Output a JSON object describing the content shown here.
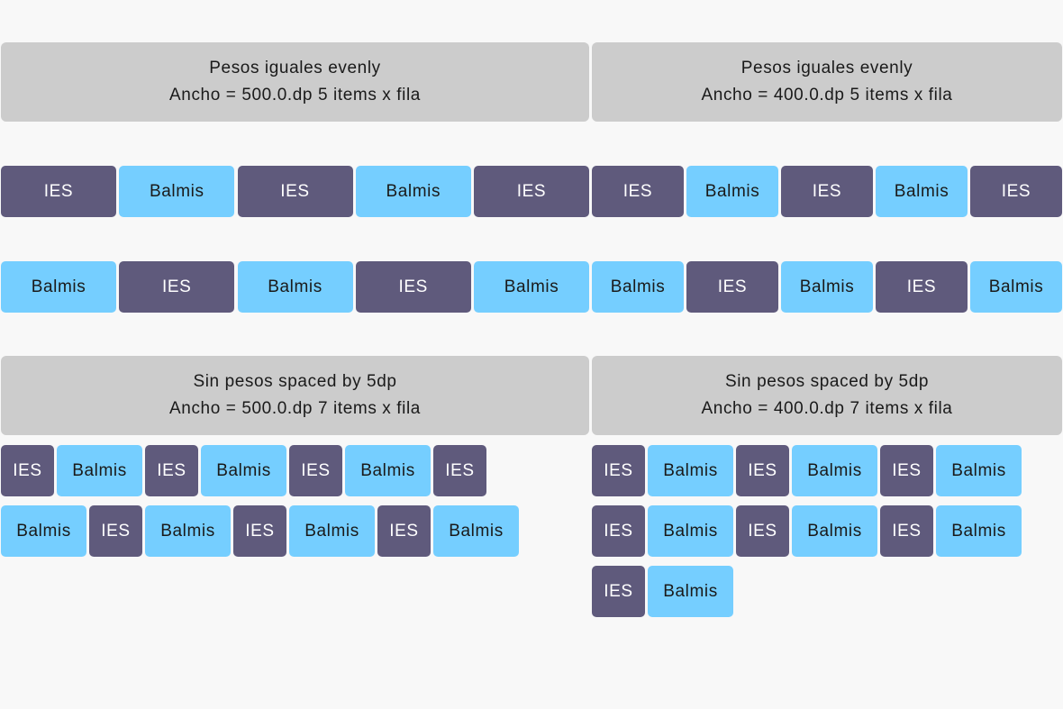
{
  "labels": {
    "ies": "IES",
    "balmis": "Balmis"
  },
  "colors": {
    "ies": "#5f5a7c",
    "balmis": "#75ceff",
    "header": "#cccccc",
    "background": "#f8f8f8"
  },
  "sections": [
    {
      "id": "evenly-500",
      "title": "Pesos iguales evenly",
      "subtitle": "Ancho = 500.0.dp 5 items x fila",
      "rows": [
        [
          "IES",
          "Balmis",
          "IES",
          "Balmis",
          "IES"
        ],
        [
          "Balmis",
          "IES",
          "Balmis",
          "IES",
          "Balmis"
        ]
      ]
    },
    {
      "id": "evenly-400",
      "title": "Pesos iguales evenly",
      "subtitle": "Ancho = 400.0.dp 5 items x fila",
      "rows": [
        [
          "IES",
          "Balmis",
          "IES",
          "Balmis",
          "IES"
        ],
        [
          "Balmis",
          "IES",
          "Balmis",
          "IES",
          "Balmis"
        ]
      ]
    },
    {
      "id": "spaced-500",
      "title": "Sin pesos spaced by 5dp",
      "subtitle": "Ancho = 500.0.dp 7 items x fila",
      "rows": [
        [
          "IES",
          "Balmis",
          "IES",
          "Balmis",
          "IES",
          "Balmis",
          "IES"
        ],
        [
          "Balmis",
          "IES",
          "Balmis",
          "IES",
          "Balmis",
          "IES",
          "Balmis"
        ]
      ]
    },
    {
      "id": "spaced-400",
      "title": "Sin pesos spaced by 5dp",
      "subtitle": "Ancho = 400.0.dp 7 items x fila",
      "rows": [
        [
          "IES",
          "Balmis",
          "IES",
          "Balmis",
          "IES",
          "Balmis"
        ],
        [
          "IES",
          "Balmis",
          "IES",
          "Balmis",
          "IES",
          "Balmis"
        ],
        [
          "IES",
          "Balmis"
        ]
      ]
    }
  ]
}
